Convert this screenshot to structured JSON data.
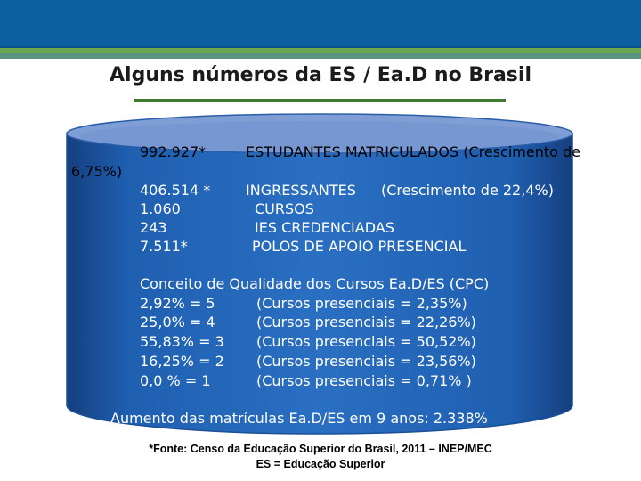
{
  "slide": {
    "title": "Alguns números da ES / Ea.D no Brasil",
    "colors": {
      "header_blue": "#0b5f9e",
      "stripe_green": "#6aa84f",
      "drum_blue": "#1f5fb0",
      "drum_top": "#7f9ed6",
      "text_white": "#ffffff"
    }
  },
  "stats": {
    "row1": {
      "value": "992.927*",
      "label": "ESTUDANTES MATRICULADOS (Crescimento de",
      "wrap": "6,75%)"
    },
    "row2": {
      "value": "406.514 *",
      "label": "INGRESSANTES",
      "extra": "(Crescimento de 22,4%)"
    },
    "row3": {
      "value": "1.060",
      "label": "CURSOS"
    },
    "row4": {
      "value": "243",
      "label": "IES CREDENCIADAS"
    },
    "row5": {
      "value": "7.511*",
      "label": "POLOS  DE APOIO PRESENCIAL"
    }
  },
  "cpc": {
    "heading": "Conceito de Qualidade dos Cursos Ea.D/ES (CPC)",
    "rows": [
      {
        "left": "2,92%  =  5",
        "right": "(Cursos presenciais =  2,35%)"
      },
      {
        "left": "25,0%  =  4",
        "right": "(Cursos presenciais = 22,26%)"
      },
      {
        "left": "55,83% = 3",
        "right": "(Cursos presenciais = 50,52%)"
      },
      {
        "left": "16,25% = 2",
        "right": "(Cursos presenciais = 23,56%)"
      },
      {
        "left": "0,0 %   = 1",
        "right": "(Cursos presenciais  = 0,71%  )"
      }
    ]
  },
  "growth": "Aumento das matrículas  Ea.D/ES em 9 anos: 2.338%",
  "footer": {
    "source": "*Fonte: Censo da Educação Superior do Brasil, 2011 – INEP/MEC",
    "note": "ES = Educação Superior"
  }
}
